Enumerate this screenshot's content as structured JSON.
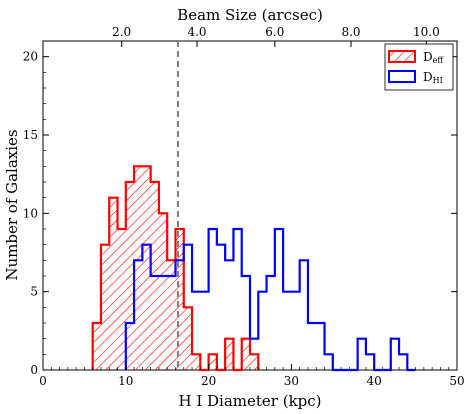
{
  "chart_data": {
    "type": "histogram",
    "xlabel": "H I Diameter (kpc)",
    "ylabel": "Number of Galaxies",
    "top_xlabel": "Beam Size (arcsec)",
    "xlim": [
      0,
      50
    ],
    "ylim": [
      0,
      21
    ],
    "x_ticks": [
      0,
      10,
      20,
      30,
      40,
      50
    ],
    "y_ticks": [
      0,
      5,
      10,
      15,
      20
    ],
    "top_ticks": [
      {
        "label": "2.0",
        "at_kpc": 9.5
      },
      {
        "label": "4.0",
        "at_kpc": 18.6
      },
      {
        "label": "6.0",
        "at_kpc": 28.0
      },
      {
        "label": "8.0",
        "at_kpc": 37.2
      },
      {
        "label": "10.0",
        "at_kpc": 46.3
      }
    ],
    "top_tick_labels": [
      "2.0",
      "4.0",
      "6.0",
      "8.0",
      "10.0"
    ],
    "vertical_line_x": 16.3,
    "bin_width": 1,
    "bin_edges_start": 6,
    "series": [
      {
        "name": "D_eff",
        "label_main": "D",
        "label_sub": "eff",
        "color": "#ff0000",
        "hatch": true,
        "start": 6,
        "counts": [
          3,
          8,
          11,
          9,
          12,
          13,
          13,
          12,
          10,
          7,
          9,
          4,
          1,
          0,
          1,
          0,
          2,
          0,
          2,
          1
        ]
      },
      {
        "name": "D_HI",
        "label_main": "D",
        "label_sub": "HI",
        "color": "#0000ff",
        "hatch": false,
        "start": 10,
        "counts": [
          3,
          7,
          8,
          6,
          6,
          6,
          7,
          8,
          5,
          5,
          9,
          8,
          7,
          9,
          6,
          2,
          5,
          6,
          9,
          5,
          5,
          7,
          3,
          3,
          1,
          0,
          0,
          0,
          2,
          1,
          0,
          0,
          2,
          1,
          0
        ]
      }
    ],
    "legend_position": "top-right"
  }
}
